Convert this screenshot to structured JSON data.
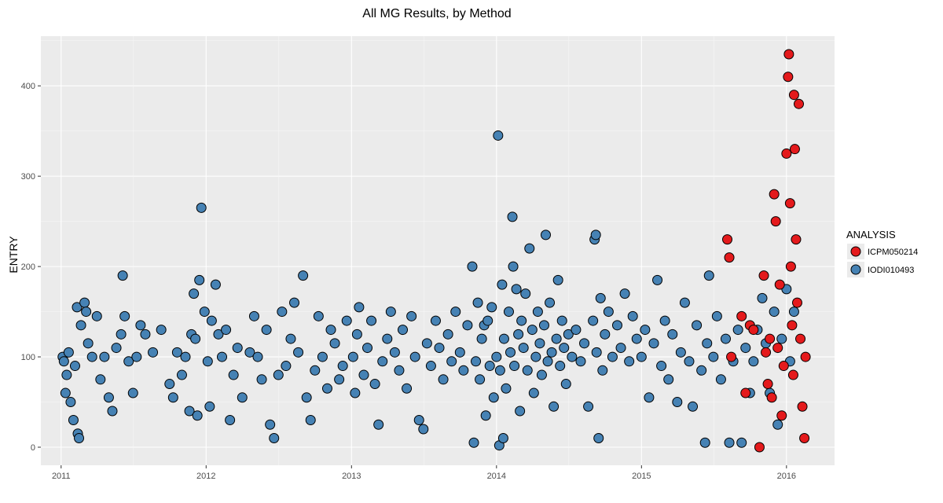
{
  "chart_data": {
    "type": "scatter",
    "title": "All MG Results, by Method",
    "xlabel": "",
    "ylabel": "ENTRY",
    "x_ticks": [
      "2011",
      "2012",
      "2013",
      "2014",
      "2015",
      "2016"
    ],
    "y_ticks": [
      "0",
      "100",
      "200",
      "300",
      "400"
    ],
    "xlim": [
      "2010-11-11",
      "2016-05-01"
    ],
    "ylim": [
      -20,
      455
    ],
    "grid": true,
    "background": "#ebebeb",
    "legend": {
      "title": "ANALYSIS",
      "placement": "right",
      "entries": [
        {
          "label": "ICPM050214",
          "color": "#e41a1c"
        },
        {
          "label": "IODI010493",
          "color": "#4682b4"
        }
      ]
    },
    "series": [
      {
        "name": "IODI010493",
        "color": "#4682b4",
        "points": [
          [
            "2011-01-05",
            100
          ],
          [
            "2011-01-08",
            95
          ],
          [
            "2011-01-12",
            60
          ],
          [
            "2011-01-15",
            80
          ],
          [
            "2011-01-20",
            105
          ],
          [
            "2011-01-25",
            50
          ],
          [
            "2011-02-01",
            30
          ],
          [
            "2011-02-05",
            90
          ],
          [
            "2011-02-10",
            155
          ],
          [
            "2011-02-12",
            15
          ],
          [
            "2011-02-15",
            10
          ],
          [
            "2011-02-20",
            135
          ],
          [
            "2011-03-01",
            160
          ],
          [
            "2011-03-05",
            150
          ],
          [
            "2011-03-10",
            115
          ],
          [
            "2011-03-20",
            100
          ],
          [
            "2011-04-01",
            145
          ],
          [
            "2011-04-10",
            75
          ],
          [
            "2011-04-20",
            100
          ],
          [
            "2011-05-01",
            55
          ],
          [
            "2011-05-10",
            40
          ],
          [
            "2011-05-20",
            110
          ],
          [
            "2011-06-01",
            125
          ],
          [
            "2011-06-05",
            190
          ],
          [
            "2011-06-10",
            145
          ],
          [
            "2011-06-20",
            95
          ],
          [
            "2011-07-01",
            60
          ],
          [
            "2011-07-10",
            100
          ],
          [
            "2011-07-20",
            135
          ],
          [
            "2011-08-01",
            125
          ],
          [
            "2011-08-20",
            105
          ],
          [
            "2011-09-10",
            130
          ],
          [
            "2011-10-01",
            70
          ],
          [
            "2011-10-10",
            55
          ],
          [
            "2011-10-20",
            105
          ],
          [
            "2011-11-01",
            80
          ],
          [
            "2011-11-10",
            100
          ],
          [
            "2011-11-20",
            40
          ],
          [
            "2011-11-25",
            125
          ],
          [
            "2011-12-01",
            170
          ],
          [
            "2011-12-05",
            120
          ],
          [
            "2011-12-10",
            35
          ],
          [
            "2011-12-15",
            185
          ],
          [
            "2011-12-20",
            265
          ],
          [
            "2011-12-28",
            150
          ],
          [
            "2012-01-05",
            95
          ],
          [
            "2012-01-10",
            45
          ],
          [
            "2012-01-15",
            140
          ],
          [
            "2012-01-25",
            180
          ],
          [
            "2012-02-01",
            125
          ],
          [
            "2012-02-10",
            100
          ],
          [
            "2012-02-20",
            130
          ],
          [
            "2012-03-01",
            30
          ],
          [
            "2012-03-10",
            80
          ],
          [
            "2012-03-20",
            110
          ],
          [
            "2012-04-01",
            55
          ],
          [
            "2012-04-20",
            105
          ],
          [
            "2012-05-01",
            145
          ],
          [
            "2012-05-10",
            100
          ],
          [
            "2012-05-20",
            75
          ],
          [
            "2012-06-01",
            130
          ],
          [
            "2012-06-10",
            25
          ],
          [
            "2012-06-20",
            10
          ],
          [
            "2012-07-01",
            80
          ],
          [
            "2012-07-10",
            150
          ],
          [
            "2012-07-20",
            90
          ],
          [
            "2012-08-01",
            120
          ],
          [
            "2012-08-10",
            160
          ],
          [
            "2012-08-20",
            105
          ],
          [
            "2012-09-01",
            190
          ],
          [
            "2012-09-10",
            55
          ],
          [
            "2012-09-20",
            30
          ],
          [
            "2012-10-01",
            85
          ],
          [
            "2012-10-10",
            145
          ],
          [
            "2012-10-20",
            100
          ],
          [
            "2012-11-01",
            65
          ],
          [
            "2012-11-10",
            130
          ],
          [
            "2012-11-20",
            115
          ],
          [
            "2012-12-01",
            75
          ],
          [
            "2012-12-10",
            90
          ],
          [
            "2012-12-20",
            140
          ],
          [
            "2013-01-05",
            100
          ],
          [
            "2013-01-10",
            60
          ],
          [
            "2013-01-15",
            125
          ],
          [
            "2013-01-20",
            155
          ],
          [
            "2013-02-01",
            80
          ],
          [
            "2013-02-10",
            110
          ],
          [
            "2013-02-20",
            140
          ],
          [
            "2013-03-01",
            70
          ],
          [
            "2013-03-10",
            25
          ],
          [
            "2013-03-20",
            95
          ],
          [
            "2013-04-01",
            120
          ],
          [
            "2013-04-10",
            150
          ],
          [
            "2013-04-20",
            105
          ],
          [
            "2013-05-01",
            85
          ],
          [
            "2013-05-10",
            130
          ],
          [
            "2013-05-20",
            65
          ],
          [
            "2013-06-01",
            145
          ],
          [
            "2013-06-10",
            100
          ],
          [
            "2013-06-20",
            30
          ],
          [
            "2013-07-01",
            20
          ],
          [
            "2013-07-10",
            115
          ],
          [
            "2013-07-20",
            90
          ],
          [
            "2013-08-01",
            140
          ],
          [
            "2013-08-10",
            110
          ],
          [
            "2013-08-20",
            75
          ],
          [
            "2013-09-01",
            125
          ],
          [
            "2013-09-10",
            95
          ],
          [
            "2013-09-20",
            150
          ],
          [
            "2013-10-01",
            105
          ],
          [
            "2013-10-10",
            85
          ],
          [
            "2013-10-20",
            135
          ],
          [
            "2013-11-01",
            200
          ],
          [
            "2013-11-05",
            5
          ],
          [
            "2013-11-10",
            95
          ],
          [
            "2013-11-15",
            160
          ],
          [
            "2013-11-20",
            75
          ],
          [
            "2013-11-25",
            120
          ],
          [
            "2013-12-01",
            135
          ],
          [
            "2013-12-05",
            35
          ],
          [
            "2013-12-10",
            140
          ],
          [
            "2013-12-15",
            90
          ],
          [
            "2013-12-20",
            155
          ],
          [
            "2013-12-25",
            55
          ],
          [
            "2014-01-01",
            100
          ],
          [
            "2014-01-05",
            345
          ],
          [
            "2014-01-08",
            2
          ],
          [
            "2014-01-10",
            85
          ],
          [
            "2014-01-15",
            180
          ],
          [
            "2014-01-18",
            10
          ],
          [
            "2014-01-20",
            120
          ],
          [
            "2014-01-25",
            65
          ],
          [
            "2014-02-01",
            150
          ],
          [
            "2014-02-05",
            105
          ],
          [
            "2014-02-10",
            255
          ],
          [
            "2014-02-12",
            200
          ],
          [
            "2014-02-15",
            90
          ],
          [
            "2014-02-20",
            175
          ],
          [
            "2014-02-25",
            125
          ],
          [
            "2014-03-01",
            40
          ],
          [
            "2014-03-05",
            140
          ],
          [
            "2014-03-10",
            110
          ],
          [
            "2014-03-15",
            170
          ],
          [
            "2014-03-20",
            85
          ],
          [
            "2014-03-25",
            220
          ],
          [
            "2014-04-01",
            130
          ],
          [
            "2014-04-05",
            60
          ],
          [
            "2014-04-10",
            100
          ],
          [
            "2014-04-15",
            150
          ],
          [
            "2014-04-20",
            115
          ],
          [
            "2014-04-25",
            80
          ],
          [
            "2014-05-01",
            135
          ],
          [
            "2014-05-05",
            235
          ],
          [
            "2014-05-10",
            95
          ],
          [
            "2014-05-15",
            160
          ],
          [
            "2014-05-20",
            105
          ],
          [
            "2014-05-25",
            45
          ],
          [
            "2014-06-01",
            120
          ],
          [
            "2014-06-05",
            185
          ],
          [
            "2014-06-10",
            90
          ],
          [
            "2014-06-15",
            140
          ],
          [
            "2014-06-20",
            110
          ],
          [
            "2014-06-25",
            70
          ],
          [
            "2014-07-01",
            125
          ],
          [
            "2014-07-10",
            100
          ],
          [
            "2014-07-20",
            130
          ],
          [
            "2014-08-01",
            95
          ],
          [
            "2014-08-10",
            115
          ],
          [
            "2014-08-20",
            45
          ],
          [
            "2014-09-01",
            140
          ],
          [
            "2014-09-05",
            230
          ],
          [
            "2014-09-08",
            235
          ],
          [
            "2014-09-10",
            105
          ],
          [
            "2014-09-15",
            10
          ],
          [
            "2014-09-20",
            165
          ],
          [
            "2014-09-25",
            85
          ],
          [
            "2014-10-01",
            125
          ],
          [
            "2014-10-10",
            150
          ],
          [
            "2014-10-20",
            100
          ],
          [
            "2014-11-01",
            135
          ],
          [
            "2014-11-10",
            110
          ],
          [
            "2014-11-20",
            170
          ],
          [
            "2014-12-01",
            95
          ],
          [
            "2014-12-10",
            145
          ],
          [
            "2014-12-20",
            120
          ],
          [
            "2015-01-01",
            100
          ],
          [
            "2015-01-10",
            130
          ],
          [
            "2015-01-20",
            55
          ],
          [
            "2015-02-01",
            115
          ],
          [
            "2015-02-10",
            185
          ],
          [
            "2015-02-20",
            90
          ],
          [
            "2015-03-01",
            140
          ],
          [
            "2015-03-10",
            75
          ],
          [
            "2015-03-20",
            125
          ],
          [
            "2015-04-01",
            50
          ],
          [
            "2015-04-10",
            105
          ],
          [
            "2015-04-20",
            160
          ],
          [
            "2015-05-01",
            95
          ],
          [
            "2015-05-10",
            45
          ],
          [
            "2015-05-20",
            135
          ],
          [
            "2015-06-01",
            85
          ],
          [
            "2015-06-10",
            5
          ],
          [
            "2015-06-15",
            115
          ],
          [
            "2015-06-20",
            190
          ],
          [
            "2015-07-01",
            100
          ],
          [
            "2015-07-10",
            145
          ],
          [
            "2015-07-20",
            75
          ],
          [
            "2015-08-01",
            120
          ],
          [
            "2015-08-10",
            5
          ],
          [
            "2015-08-20",
            95
          ],
          [
            "2015-09-01",
            130
          ],
          [
            "2015-09-10",
            5
          ],
          [
            "2015-09-20",
            110
          ],
          [
            "2015-10-01",
            60
          ],
          [
            "2015-10-10",
            95
          ],
          [
            "2015-10-20",
            130
          ],
          [
            "2015-11-01",
            165
          ],
          [
            "2015-11-10",
            115
          ],
          [
            "2015-11-20",
            60
          ],
          [
            "2015-12-01",
            150
          ],
          [
            "2015-12-10",
            25
          ],
          [
            "2015-12-20",
            120
          ],
          [
            "2016-01-01",
            175
          ],
          [
            "2016-01-10",
            95
          ],
          [
            "2016-01-20",
            150
          ]
        ]
      },
      {
        "name": "ICPM050214",
        "color": "#e41a1c",
        "points": [
          [
            "2015-08-05",
            230
          ],
          [
            "2015-08-10",
            210
          ],
          [
            "2015-08-15",
            100
          ],
          [
            "2015-09-10",
            145
          ],
          [
            "2015-09-20",
            60
          ],
          [
            "2015-10-01",
            135
          ],
          [
            "2015-10-10",
            130
          ],
          [
            "2015-10-25",
            0
          ],
          [
            "2015-11-05",
            190
          ],
          [
            "2015-11-10",
            105
          ],
          [
            "2015-11-15",
            70
          ],
          [
            "2015-11-20",
            120
          ],
          [
            "2015-11-25",
            55
          ],
          [
            "2015-12-01",
            280
          ],
          [
            "2015-12-05",
            250
          ],
          [
            "2015-12-10",
            110
          ],
          [
            "2015-12-15",
            180
          ],
          [
            "2015-12-20",
            35
          ],
          [
            "2015-12-25",
            90
          ],
          [
            "2016-01-01",
            325
          ],
          [
            "2016-01-05",
            410
          ],
          [
            "2016-01-07",
            435
          ],
          [
            "2016-01-10",
            270
          ],
          [
            "2016-01-12",
            200
          ],
          [
            "2016-01-15",
            135
          ],
          [
            "2016-01-18",
            80
          ],
          [
            "2016-01-20",
            390
          ],
          [
            "2016-01-22",
            330
          ],
          [
            "2016-01-25",
            230
          ],
          [
            "2016-01-28",
            160
          ],
          [
            "2016-02-01",
            380
          ],
          [
            "2016-02-05",
            120
          ],
          [
            "2016-02-10",
            45
          ],
          [
            "2016-02-15",
            10
          ],
          [
            "2016-02-18",
            100
          ]
        ]
      }
    ]
  }
}
